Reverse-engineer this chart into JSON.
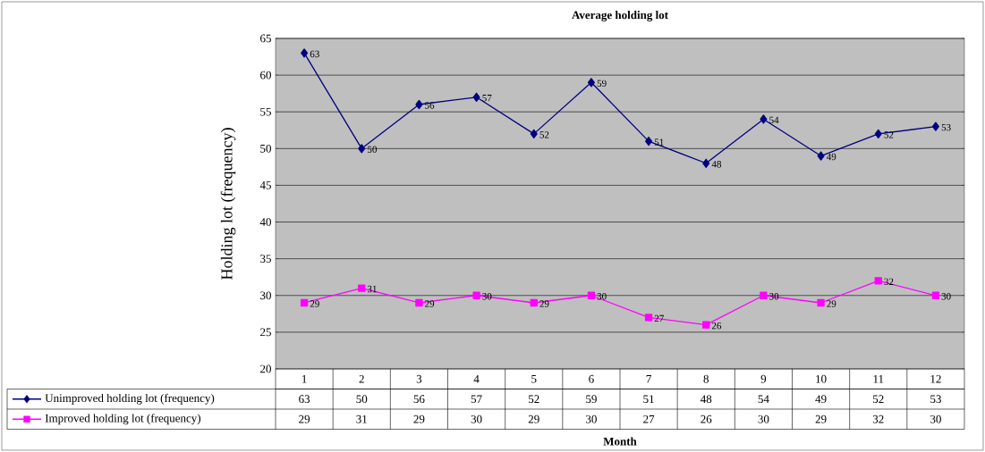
{
  "chart_data": {
    "type": "line",
    "title": "Average holding lot",
    "xlabel": "Month",
    "ylabel": "Holding lot (frequency)",
    "categories": [
      "1",
      "2",
      "3",
      "4",
      "5",
      "6",
      "7",
      "8",
      "9",
      "10",
      "11",
      "12"
    ],
    "series": [
      {
        "name": "Unimproved holding lot (frequency)",
        "color": "#000080",
        "marker": "diamond",
        "values": [
          63,
          50,
          56,
          57,
          52,
          59,
          51,
          48,
          54,
          49,
          52,
          53
        ],
        "value_labels": [
          "63",
          "50",
          "56",
          "57",
          "52",
          "59",
          "51",
          "48",
          "54",
          "49",
          "52",
          "53"
        ]
      },
      {
        "name": "Improved holding lot (frequency)",
        "color": "#ff00ff",
        "marker": "square",
        "values": [
          29,
          31,
          29,
          30,
          29,
          30,
          27,
          26,
          30,
          29,
          32,
          30
        ],
        "value_labels": [
          "29",
          "31",
          "29",
          "30",
          "29",
          "30",
          "27",
          "26",
          "30",
          "29",
          "32",
          "30"
        ]
      }
    ],
    "ylim": [
      20,
      65
    ],
    "yticks": [
      20,
      25,
      30,
      35,
      40,
      45,
      50,
      55,
      60,
      65
    ],
    "grid": "y",
    "legend": "left",
    "data_labels": true,
    "line_style": "solid"
  }
}
